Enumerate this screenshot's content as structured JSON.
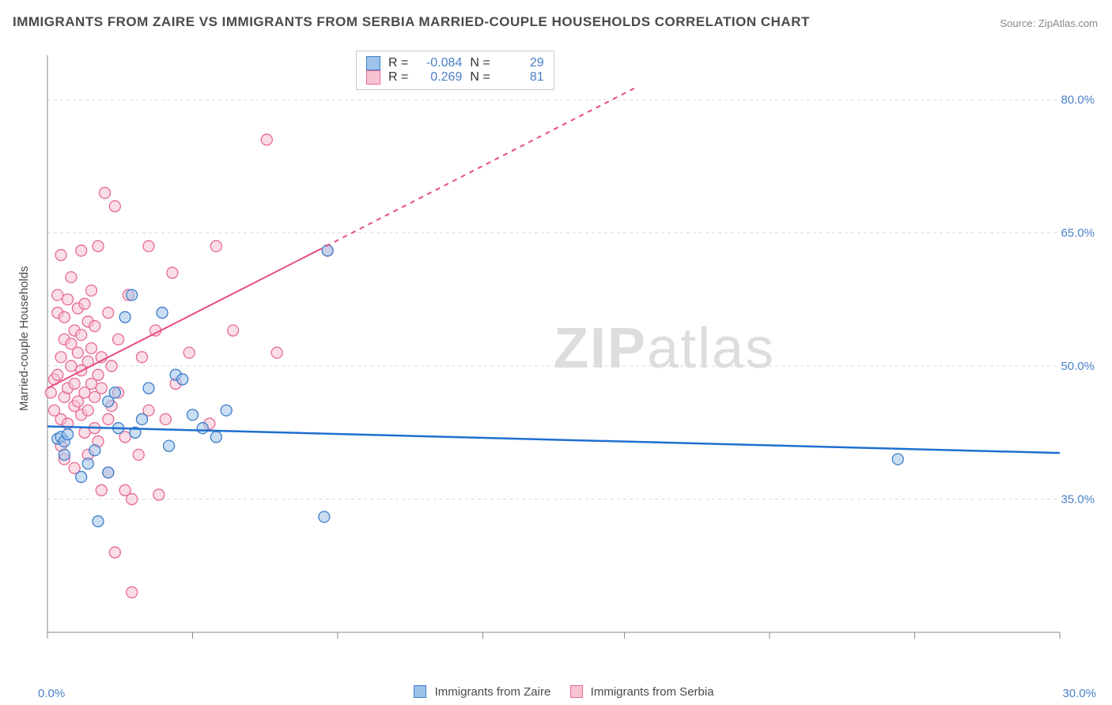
{
  "title": "IMMIGRANTS FROM ZAIRE VS IMMIGRANTS FROM SERBIA MARRIED-COUPLE HOUSEHOLDS CORRELATION CHART",
  "source": "Source: ZipAtlas.com",
  "watermark_zip": "ZIP",
  "watermark_atlas": "atlas",
  "ylabel": "Married-couple Households",
  "legend_a": "Immigrants from Zaire",
  "legend_b": "Immigrants from Serbia",
  "xmin_label": "0.0%",
  "xmax_label": "30.0%",
  "stats": {
    "a": {
      "r_label": "R =",
      "r": "-0.084",
      "n_label": "N =",
      "n": "29"
    },
    "b": {
      "r_label": "R =",
      "r": " 0.269",
      "n_label": "N =",
      "n": "81"
    }
  },
  "chart": {
    "type": "scatter",
    "xlim": [
      0,
      30
    ],
    "ylim": [
      20,
      85
    ],
    "yticks": [
      35,
      50,
      65,
      80
    ],
    "ytick_labels": [
      "35.0%",
      "50.0%",
      "65.0%",
      "80.0%"
    ],
    "xticks_minor": [
      0,
      4.3,
      8.6,
      12.9,
      17.1,
      21.4,
      25.7,
      30
    ],
    "grid_color": "#d9d9d9",
    "axis_color": "#888",
    "background_color": "#ffffff",
    "marker_radius": 7,
    "marker_opacity": 0.55,
    "series_a": {
      "color_fill": "#9ec3ea",
      "color_stroke": "#3d7dca",
      "line_color": "#1f6fd0",
      "line_width": 2.5,
      "trend": {
        "x0": 0,
        "y0": 43.2,
        "x1": 30,
        "y1": 40.2
      },
      "points": [
        [
          0.3,
          41.8
        ],
        [
          0.4,
          42.0
        ],
        [
          0.5,
          41.5
        ],
        [
          0.5,
          40.0
        ],
        [
          0.6,
          42.3
        ],
        [
          1.0,
          37.5
        ],
        [
          1.2,
          39.0
        ],
        [
          1.4,
          40.5
        ],
        [
          1.5,
          32.5
        ],
        [
          1.8,
          38.0
        ],
        [
          1.8,
          46.0
        ],
        [
          2.0,
          47.0
        ],
        [
          2.1,
          43.0
        ],
        [
          2.3,
          55.5
        ],
        [
          2.5,
          58.0
        ],
        [
          2.6,
          42.5
        ],
        [
          2.8,
          44.0
        ],
        [
          3.0,
          47.5
        ],
        [
          3.4,
          56.0
        ],
        [
          3.6,
          41.0
        ],
        [
          3.8,
          49.0
        ],
        [
          4.0,
          48.5
        ],
        [
          4.3,
          44.5
        ],
        [
          4.6,
          43.0
        ],
        [
          5.0,
          42.0
        ],
        [
          5.3,
          45.0
        ],
        [
          8.2,
          33.0
        ],
        [
          8.3,
          63.0
        ],
        [
          25.2,
          39.5
        ]
      ]
    },
    "series_b": {
      "color_fill": "#f6c3d1",
      "color_stroke": "#e76a94",
      "line_color": "#e84b87",
      "line_width": 2,
      "trend_solid": {
        "x0": 0,
        "y0": 47.5,
        "x1": 8.0,
        "y1": 63.0
      },
      "trend_dash": {
        "x0": 8.0,
        "y0": 63.0,
        "x1": 17.5,
        "y1": 81.5
      },
      "points": [
        [
          0.1,
          47.0
        ],
        [
          0.2,
          48.5
        ],
        [
          0.2,
          45.0
        ],
        [
          0.3,
          49.0
        ],
        [
          0.3,
          56.0
        ],
        [
          0.3,
          58.0
        ],
        [
          0.4,
          44.0
        ],
        [
          0.4,
          51.0
        ],
        [
          0.4,
          62.5
        ],
        [
          0.4,
          41.0
        ],
        [
          0.5,
          46.5
        ],
        [
          0.5,
          53.0
        ],
        [
          0.5,
          55.5
        ],
        [
          0.5,
          39.5
        ],
        [
          0.6,
          47.5
        ],
        [
          0.6,
          57.5
        ],
        [
          0.6,
          43.5
        ],
        [
          0.7,
          50.0
        ],
        [
          0.7,
          52.5
        ],
        [
          0.7,
          60.0
        ],
        [
          0.8,
          45.5
        ],
        [
          0.8,
          48.0
        ],
        [
          0.8,
          54.0
        ],
        [
          0.8,
          38.5
        ],
        [
          0.9,
          46.0
        ],
        [
          0.9,
          51.5
        ],
        [
          0.9,
          56.5
        ],
        [
          1.0,
          44.5
        ],
        [
          1.0,
          49.5
        ],
        [
          1.0,
          53.5
        ],
        [
          1.0,
          63.0
        ],
        [
          1.1,
          42.5
        ],
        [
          1.1,
          47.0
        ],
        [
          1.1,
          57.0
        ],
        [
          1.2,
          45.0
        ],
        [
          1.2,
          50.5
        ],
        [
          1.2,
          55.0
        ],
        [
          1.2,
          40.0
        ],
        [
          1.3,
          48.0
        ],
        [
          1.3,
          52.0
        ],
        [
          1.3,
          58.5
        ],
        [
          1.4,
          43.0
        ],
        [
          1.4,
          46.5
        ],
        [
          1.4,
          54.5
        ],
        [
          1.5,
          41.5
        ],
        [
          1.5,
          49.0
        ],
        [
          1.5,
          63.5
        ],
        [
          1.6,
          36.0
        ],
        [
          1.6,
          47.5
        ],
        [
          1.6,
          51.0
        ],
        [
          1.7,
          69.5
        ],
        [
          1.8,
          56.0
        ],
        [
          1.8,
          44.0
        ],
        [
          1.8,
          38.0
        ],
        [
          1.9,
          50.0
        ],
        [
          1.9,
          45.5
        ],
        [
          2.0,
          68.0
        ],
        [
          2.0,
          29.0
        ],
        [
          2.1,
          53.0
        ],
        [
          2.1,
          47.0
        ],
        [
          2.3,
          36.0
        ],
        [
          2.3,
          42.0
        ],
        [
          2.4,
          58.0
        ],
        [
          2.5,
          35.0
        ],
        [
          2.5,
          24.5
        ],
        [
          2.7,
          40.0
        ],
        [
          2.8,
          51.0
        ],
        [
          3.0,
          63.5
        ],
        [
          3.0,
          45.0
        ],
        [
          3.2,
          54.0
        ],
        [
          3.3,
          35.5
        ],
        [
          3.5,
          44.0
        ],
        [
          3.7,
          60.5
        ],
        [
          3.8,
          48.0
        ],
        [
          4.2,
          51.5
        ],
        [
          4.8,
          43.5
        ],
        [
          5.0,
          63.5
        ],
        [
          5.5,
          54.0
        ],
        [
          6.5,
          75.5
        ],
        [
          6.8,
          51.5
        ],
        [
          8.3,
          63.0
        ]
      ]
    }
  }
}
